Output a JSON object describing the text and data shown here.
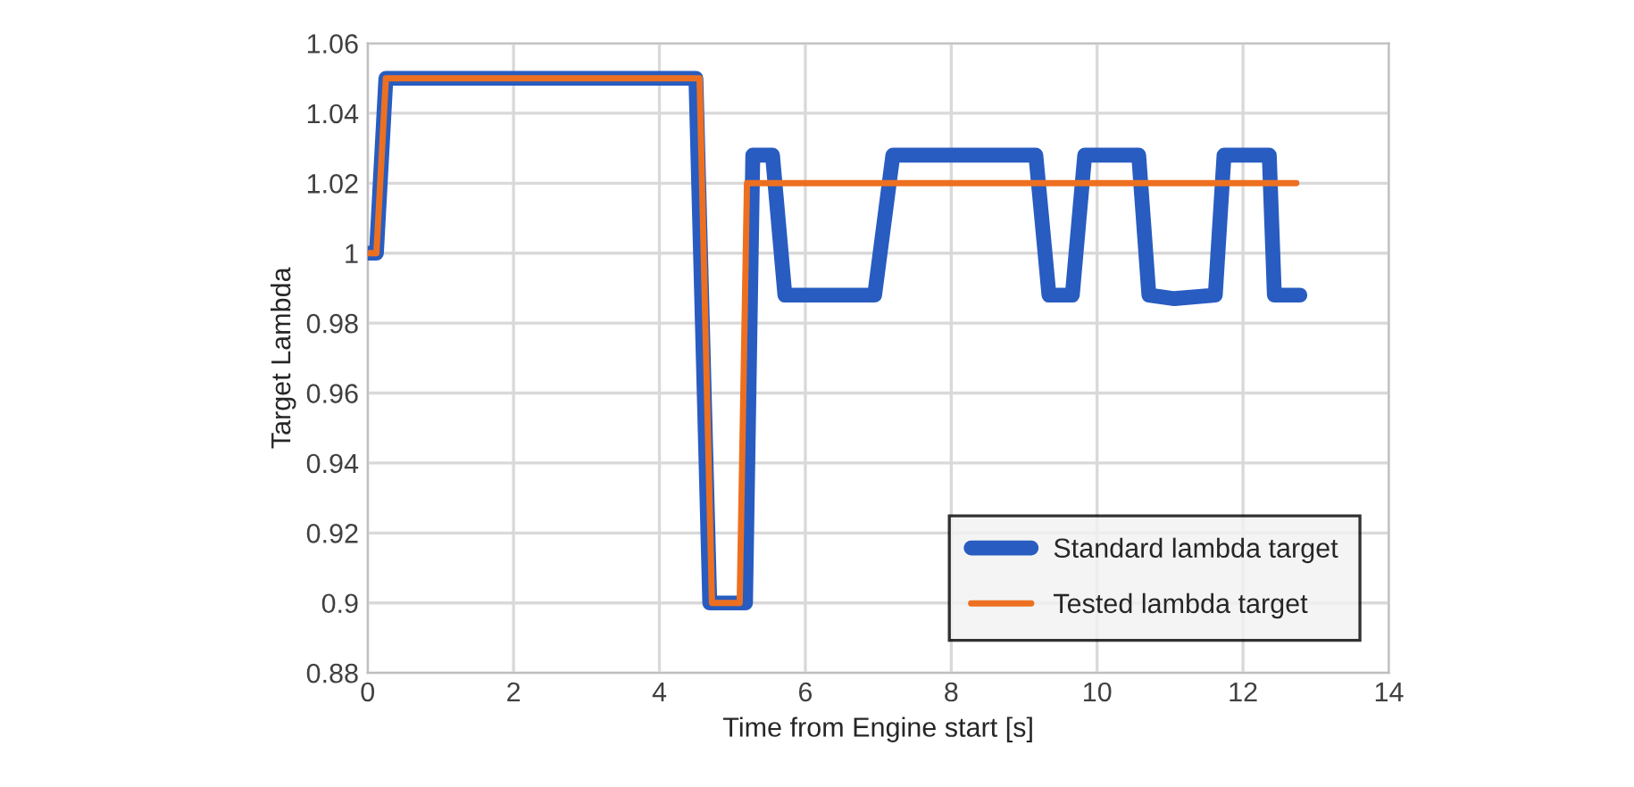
{
  "chart_data": {
    "type": "line",
    "xlabel": "Time from Engine start [s]",
    "ylabel": "Target Lambda",
    "xlim": [
      0,
      14
    ],
    "xticks": [
      0,
      2,
      4,
      6,
      8,
      10,
      12,
      14
    ],
    "ylim": [
      0.88,
      1.06
    ],
    "yticks": [
      0.88,
      0.9,
      0.92,
      0.94,
      0.96,
      0.98,
      1,
      1.02,
      1.04,
      1.06
    ],
    "grid": true,
    "legend": "bottom right",
    "marker": "none",
    "line_style": "solid",
    "series": [
      {
        "name": "Standard lambda target",
        "color": "#285cc0",
        "x": [
          0,
          0.12,
          0.25,
          4.5,
          4.69,
          5.18,
          5.28,
          5.55,
          5.72,
          6.95,
          7.2,
          9.16,
          9.34,
          9.66,
          9.83,
          10.57,
          10.71,
          11.06,
          11.62,
          11.74,
          12.36,
          12.43,
          12.78
        ],
        "values": [
          1.0,
          1.0,
          1.05,
          1.05,
          0.9,
          0.9,
          1.028,
          1.028,
          0.988,
          0.988,
          1.028,
          1.028,
          0.988,
          0.988,
          1.028,
          1.028,
          0.988,
          0.987,
          0.988,
          1.028,
          1.028,
          0.988,
          0.988
        ]
      },
      {
        "name": "Tested lambda target",
        "color": "#ed7020",
        "x": [
          0,
          0.12,
          0.25,
          4.55,
          4.72,
          5.1,
          5.2,
          12.73
        ],
        "values": [
          1.0,
          1.0,
          1.05,
          1.05,
          0.9,
          0.9,
          1.02,
          1.02
        ]
      }
    ]
  }
}
